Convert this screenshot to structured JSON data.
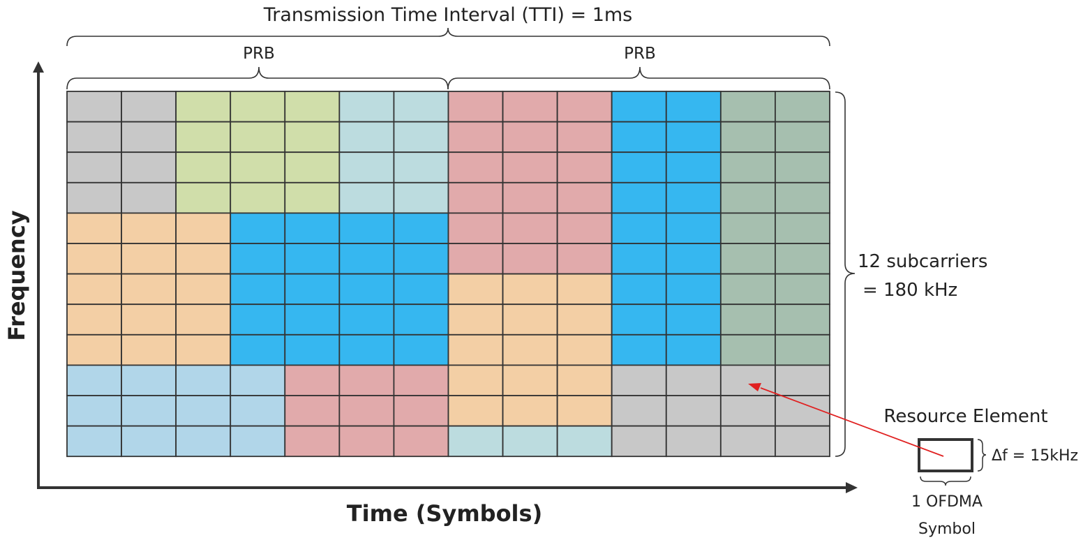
{
  "title": "Transmission Time Interval (TTI) = 1ms",
  "prb_labels": [
    "PRB",
    "PRB"
  ],
  "y_axis_label": "Frequency",
  "x_axis_label": "Time (Symbols)",
  "subcarriers_label_line1": "12 subcarriers",
  "subcarriers_label_line2": "= 180 kHz",
  "resource_element_label": "Resource Element",
  "delta_f_label": "Δf = 15kHz",
  "ofdma_label_line1": "1 OFDMA",
  "ofdma_label_line2": "Symbol",
  "colors": {
    "gray": "#c8c8c8",
    "green": "#d0deaa",
    "lightcyan": "#bcdcdf",
    "pink": "#e1aaab",
    "blue": "#36b7f0",
    "sage": "#a6bfaf",
    "peach": "#f3cfa5",
    "lightblue": "#b1d6e9",
    "arrow": "#e02020"
  },
  "grid": [
    [
      "gray",
      "gray",
      "green",
      "green",
      "green",
      "lightcyan",
      "lightcyan",
      "pink",
      "pink",
      "pink",
      "blue",
      "blue",
      "sage",
      "sage"
    ],
    [
      "gray",
      "gray",
      "green",
      "green",
      "green",
      "lightcyan",
      "lightcyan",
      "pink",
      "pink",
      "pink",
      "blue",
      "blue",
      "sage",
      "sage"
    ],
    [
      "gray",
      "gray",
      "green",
      "green",
      "green",
      "lightcyan",
      "lightcyan",
      "pink",
      "pink",
      "pink",
      "blue",
      "blue",
      "sage",
      "sage"
    ],
    [
      "gray",
      "gray",
      "green",
      "green",
      "green",
      "lightcyan",
      "lightcyan",
      "pink",
      "pink",
      "pink",
      "blue",
      "blue",
      "sage",
      "sage"
    ],
    [
      "peach",
      "peach",
      "peach",
      "blue",
      "blue",
      "blue",
      "blue",
      "pink",
      "pink",
      "pink",
      "blue",
      "blue",
      "sage",
      "sage"
    ],
    [
      "peach",
      "peach",
      "peach",
      "blue",
      "blue",
      "blue",
      "blue",
      "pink",
      "pink",
      "pink",
      "blue",
      "blue",
      "sage",
      "sage"
    ],
    [
      "peach",
      "peach",
      "peach",
      "blue",
      "blue",
      "blue",
      "blue",
      "peach",
      "peach",
      "peach",
      "blue",
      "blue",
      "sage",
      "sage"
    ],
    [
      "peach",
      "peach",
      "peach",
      "blue",
      "blue",
      "blue",
      "blue",
      "peach",
      "peach",
      "peach",
      "blue",
      "blue",
      "sage",
      "sage"
    ],
    [
      "peach",
      "peach",
      "peach",
      "blue",
      "blue",
      "blue",
      "blue",
      "peach",
      "peach",
      "peach",
      "blue",
      "blue",
      "sage",
      "sage"
    ],
    [
      "lightblue",
      "lightblue",
      "lightblue",
      "lightblue",
      "pink",
      "pink",
      "pink",
      "peach",
      "peach",
      "peach",
      "gray",
      "gray",
      "gray",
      "gray"
    ],
    [
      "lightblue",
      "lightblue",
      "lightblue",
      "lightblue",
      "pink",
      "pink",
      "pink",
      "peach",
      "peach",
      "peach",
      "gray",
      "gray",
      "gray",
      "gray"
    ],
    [
      "lightblue",
      "lightblue",
      "lightblue",
      "lightblue",
      "pink",
      "pink",
      "pink",
      "lightcyan",
      "lightcyan",
      "lightcyan",
      "gray",
      "gray",
      "gray",
      "gray"
    ]
  ]
}
